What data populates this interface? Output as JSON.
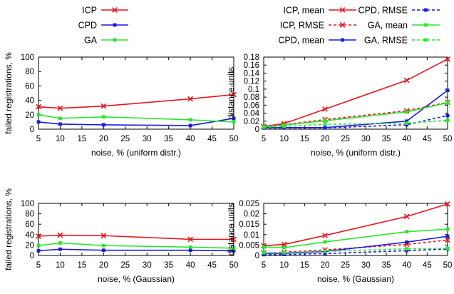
{
  "legends": {
    "left": [
      {
        "label": "ICP",
        "color": "#e8141d",
        "marker": "x",
        "dash": false
      },
      {
        "label": "CPD",
        "color": "#1a1adf",
        "marker": "square",
        "dash": false
      },
      {
        "label": "GA",
        "color": "#2be62b",
        "marker": "square",
        "dash": false
      }
    ],
    "right": [
      {
        "label": "ICP, mean",
        "color": "#e8141d",
        "marker": "x",
        "dash": false
      },
      {
        "label": "CPD, RMSE",
        "color": "#1a1adf",
        "marker": "square",
        "dash": true
      },
      {
        "label": "ICP, RMSE",
        "color": "#e8141d",
        "marker": "x",
        "dash": true
      },
      {
        "label": "GA, mean",
        "color": "#2be62b",
        "marker": "square",
        "dash": false
      },
      {
        "label": "CPD, mean",
        "color": "#1a1adf",
        "marker": "square",
        "dash": false
      },
      {
        "label": "GA, RMSE",
        "color": "#2be62b",
        "marker": "square",
        "dash": true
      }
    ]
  },
  "chart_data": [
    {
      "type": "line",
      "xlabel": "noise, % (uniform distr.)",
      "ylabel": "failed registrations, %",
      "x": [
        5,
        10,
        20,
        40,
        50
      ],
      "xticks": [
        5,
        10,
        15,
        20,
        25,
        30,
        35,
        40,
        45,
        50
      ],
      "xlim": [
        5,
        50
      ],
      "ylim": [
        0,
        100
      ],
      "yticks": [
        0,
        20,
        40,
        60,
        80,
        100
      ],
      "ytick_labels": [
        "0",
        "20",
        "40",
        "60",
        "80",
        "100"
      ],
      "series": [
        {
          "name": "ICP",
          "color": "#e8141d",
          "marker": "x",
          "dash": false,
          "values": [
            31,
            29,
            32,
            42,
            48
          ]
        },
        {
          "name": "CPD",
          "color": "#1a1adf",
          "marker": "square",
          "dash": false,
          "values": [
            10,
            7,
            6,
            5,
            15
          ]
        },
        {
          "name": "GA",
          "color": "#2be62b",
          "marker": "square",
          "dash": false,
          "values": [
            20,
            15,
            17,
            13,
            10
          ]
        }
      ]
    },
    {
      "type": "line",
      "xlabel": "noise, % (uniform distr.)",
      "ylabel": "distance units",
      "x": [
        5,
        10,
        20,
        40,
        50
      ],
      "xticks": [
        5,
        10,
        15,
        20,
        25,
        30,
        35,
        40,
        45,
        50
      ],
      "xlim": [
        5,
        50
      ],
      "ylim": [
        0,
        0.18
      ],
      "yticks": [
        0,
        0.02,
        0.04,
        0.06,
        0.08,
        0.1,
        0.12,
        0.14,
        0.16,
        0.18
      ],
      "ytick_labels": [
        "0",
        "0.02",
        "0.04",
        "0.06",
        "0.08",
        "0.1",
        "0.12",
        "0.14",
        "0.16",
        "0.18"
      ],
      "series": [
        {
          "name": "ICP, mean",
          "color": "#e8141d",
          "marker": "x",
          "dash": false,
          "values": [
            0.007,
            0.014,
            0.05,
            0.122,
            0.175
          ]
        },
        {
          "name": "ICP, RMSE",
          "color": "#e8141d",
          "marker": "x",
          "dash": true,
          "values": [
            0.006,
            0.011,
            0.024,
            0.046,
            0.067
          ]
        },
        {
          "name": "CPD, mean",
          "color": "#1a1adf",
          "marker": "square",
          "dash": false,
          "values": [
            0.004,
            0.004,
            0.004,
            0.02,
            0.097
          ]
        },
        {
          "name": "CPD, RMSE",
          "color": "#1a1adf",
          "marker": "square",
          "dash": true,
          "values": [
            0.003,
            0.003,
            0.003,
            0.011,
            0.034
          ]
        },
        {
          "name": "GA, mean",
          "color": "#2be62b",
          "marker": "square",
          "dash": false,
          "values": [
            0.006,
            0.01,
            0.021,
            0.043,
            0.066
          ]
        },
        {
          "name": "GA, RMSE",
          "color": "#2be62b",
          "marker": "square",
          "dash": true,
          "values": [
            0.005,
            0.007,
            0.012,
            0.015,
            0.022
          ]
        }
      ]
    },
    {
      "type": "line",
      "xlabel": "noise, % (Gaussian)",
      "ylabel": "failed registrations, %",
      "x": [
        5,
        10,
        20,
        40,
        50
      ],
      "xticks": [
        5,
        10,
        15,
        20,
        25,
        30,
        35,
        40,
        45,
        50
      ],
      "xlim": [
        5,
        50
      ],
      "ylim": [
        0,
        100
      ],
      "yticks": [
        0,
        20,
        40,
        60,
        80,
        100
      ],
      "ytick_labels": [
        "0",
        "20",
        "40",
        "60",
        "80",
        "100"
      ],
      "series": [
        {
          "name": "ICP",
          "color": "#e8141d",
          "marker": "x",
          "dash": false,
          "values": [
            37,
            39,
            38,
            31,
            31
          ]
        },
        {
          "name": "CPD",
          "color": "#1a1adf",
          "marker": "square",
          "dash": false,
          "values": [
            9,
            12,
            10,
            10,
            9
          ]
        },
        {
          "name": "GA",
          "color": "#2be62b",
          "marker": "square",
          "dash": false,
          "values": [
            19,
            24,
            19,
            16,
            14
          ]
        }
      ]
    },
    {
      "type": "line",
      "xlabel": "noise, % (Gaussian)",
      "ylabel": "distance units",
      "x": [
        5,
        10,
        20,
        40,
        50
      ],
      "xticks": [
        5,
        10,
        15,
        20,
        25,
        30,
        35,
        40,
        45,
        50
      ],
      "xlim": [
        5,
        50
      ],
      "ylim": [
        0,
        0.025
      ],
      "yticks": [
        0,
        0.005,
        0.01,
        0.015,
        0.02,
        0.025
      ],
      "ytick_labels": [
        "0",
        "0.005",
        "0.01",
        "0.015",
        "0.02",
        "0.025"
      ],
      "series": [
        {
          "name": "ICP, mean",
          "color": "#e8141d",
          "marker": "x",
          "dash": false,
          "values": [
            0.0047,
            0.0053,
            0.0096,
            0.0187,
            0.0247
          ]
        },
        {
          "name": "ICP, RMSE",
          "color": "#e8141d",
          "marker": "x",
          "dash": true,
          "values": [
            0.0012,
            0.0016,
            0.0027,
            0.0053,
            0.0074
          ]
        },
        {
          "name": "CPD, mean",
          "color": "#1a1adf",
          "marker": "square",
          "dash": false,
          "values": [
            0.001,
            0.0011,
            0.0019,
            0.0064,
            0.0092
          ]
        },
        {
          "name": "CPD, RMSE",
          "color": "#1a1adf",
          "marker": "square",
          "dash": true,
          "values": [
            0.0004,
            0.0005,
            0.0009,
            0.0023,
            0.0031
          ]
        },
        {
          "name": "GA, mean",
          "color": "#2be62b",
          "marker": "square",
          "dash": false,
          "values": [
            0.0041,
            0.0038,
            0.0065,
            0.0114,
            0.0126
          ]
        },
        {
          "name": "GA, RMSE",
          "color": "#2be62b",
          "marker": "square",
          "dash": true,
          "values": [
            0.0013,
            0.0013,
            0.002,
            0.0032,
            0.0034
          ]
        }
      ]
    }
  ]
}
